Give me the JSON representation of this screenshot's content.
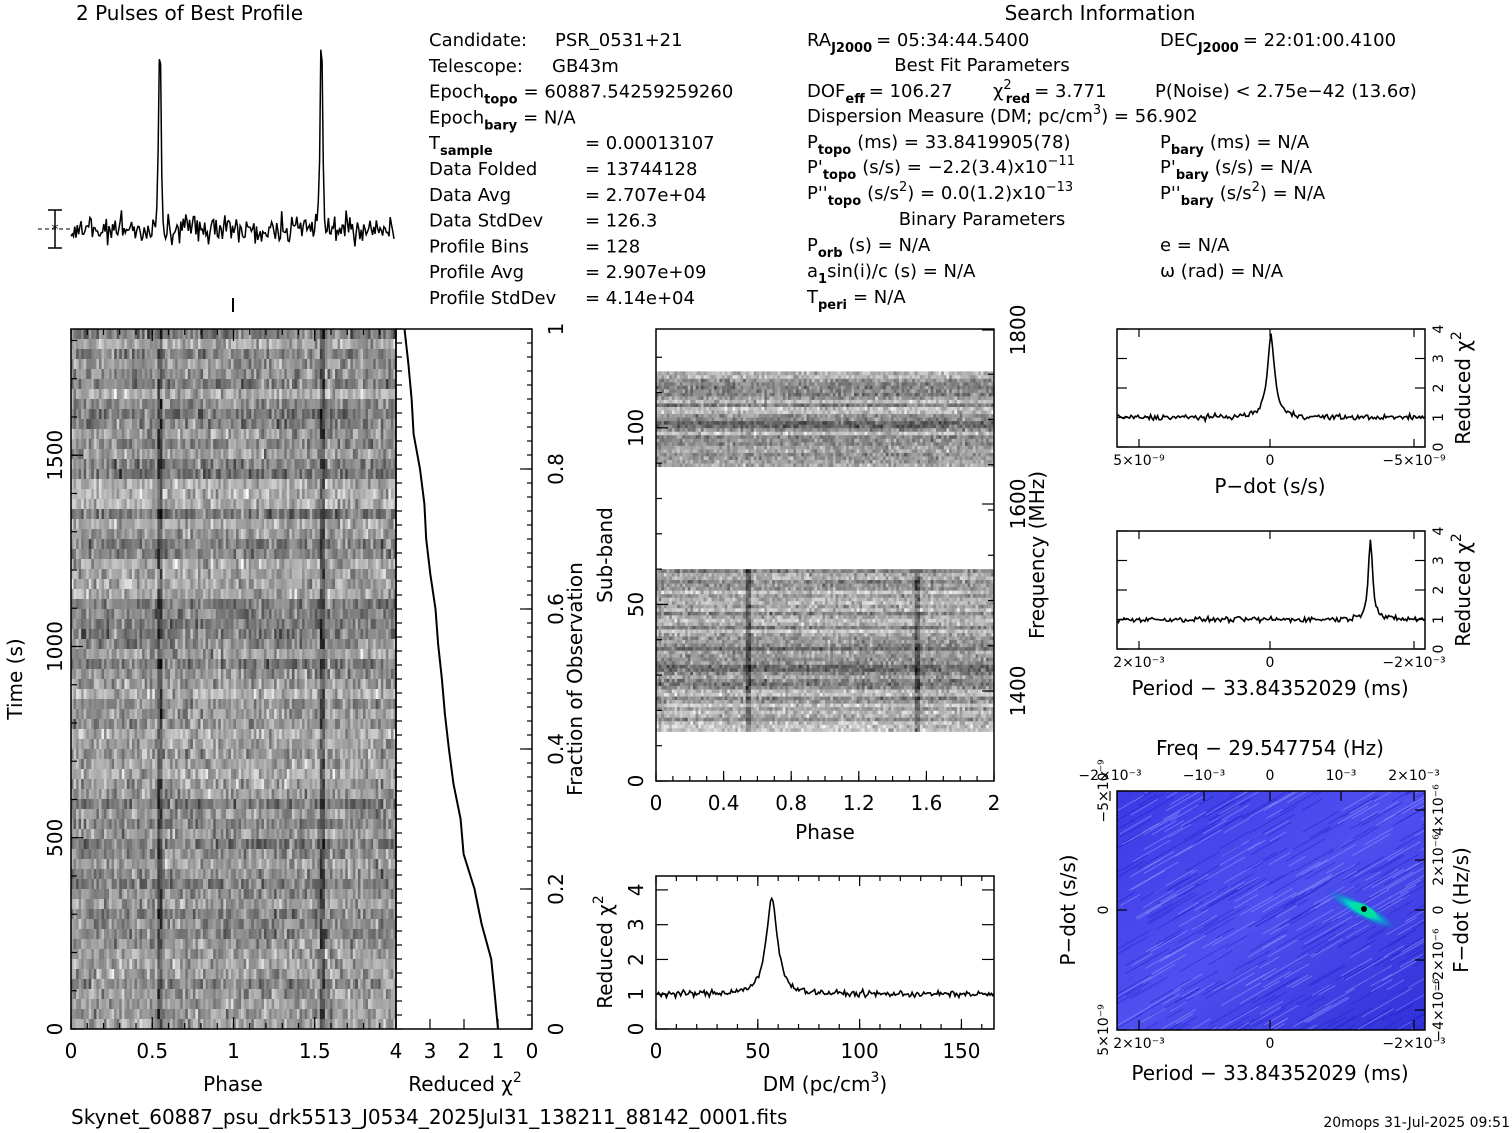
{
  "texts": {
    "prof_title": "2 Pulses of Best Profile",
    "search_title": "Search Information",
    "bestfit_title": "Best Fit Parameters",
    "binary_title": "Binary Parameters",
    "footer_left": "Skynet_60887_psu_drk5513_J0534_2025Jul31_138211_88142_0001.fits",
    "footer_right": "20mops  31-Jul-2025 09:51"
  },
  "candidate_info": [
    {
      "label": "Candidate:",
      "value": "PSR_0531+21"
    },
    {
      "label": "Telescope:",
      "value": "GB43m"
    },
    {
      "label": "Epoch",
      "sub": "topo",
      "value": "= 60887.54259259260"
    },
    {
      "label": "Epoch",
      "sub": "bary",
      "value": "= N/A"
    },
    {
      "label": "T",
      "sub": "sample",
      "value": "=  0.00013107"
    },
    {
      "label": "Data Folded",
      "value": "=  13744128"
    },
    {
      "label": "Data Avg",
      "value": "=  2.707e+04"
    },
    {
      "label": "Data StdDev",
      "value": "=  126.3"
    },
    {
      "label": "Profile Bins",
      "value": "=  128"
    },
    {
      "label": "Profile Avg",
      "value": "=  2.907e+09"
    },
    {
      "label": "Profile StdDev",
      "value": "=  4.14e+04"
    }
  ],
  "search_info": {
    "ra_label": "RA",
    "ra_sub": "J2000",
    "ra_value": "= 05:34:44.5400",
    "dec_label": "DEC",
    "dec_sub": "J2000",
    "dec_value": "= 22:01:00.4100",
    "dof_label": "DOF",
    "dof_sub": "eff",
    "dof_value": "= 106.27",
    "chi_label": "χ",
    "chi_sup": "2",
    "chi_sub": "red",
    "chi_value": "= 3.771",
    "pnoise": "P(Noise) < 2.75e−42   (13.6σ)",
    "dm_text": "Dispersion Measure (DM; pc/cm",
    "dm_sup": "3",
    "dm_value": ") = 56.902",
    "ptopo_label": "P",
    "ptopo_sub": "topo",
    "ptopo_value": "(ms) =  33.8419905(78)",
    "pbary_label": "P",
    "pbary_sub": "bary",
    "pbary_value": "(ms) = N/A",
    "pdtopo_label": "P'",
    "pdtopo_sub": "topo",
    "pdtopo_value": "(s/s) = −2.2(3.4)x10",
    "pdtopo_exp": "−11",
    "pdbary_label": "P'",
    "pdbary_sub": "bary",
    "pdbary_value": "(s/s) = N/A",
    "pddtopo_label": "P''",
    "pddtopo_sub": "topo",
    "pddtopo_value": "(s/s",
    "pddtopo_sup": "2",
    "pddtopo_value2": ") = 0.0(1.2)x10",
    "pddtopo_exp": "−13",
    "pddbary_label": "P''",
    "pddbary_sub": "bary",
    "pddbary_value": "(s/s",
    "pddbary_sup": "2",
    "pddbary_value2": ") = N/A",
    "porb_label": "P",
    "porb_sub": "orb",
    "porb_value": "(s) = N/A",
    "e_value": "e = N/A",
    "a1_label": "a",
    "a1_sub": "1",
    "a1_value": "sin(i)/c (s) = N/A",
    "omega_value": "ω (rad) = N/A",
    "tperi_label": "T",
    "tperi_sub": "peri",
    "tperi_value": "= N/A"
  },
  "chart_data": [
    {
      "id": "profile",
      "type": "line",
      "title": "2 Pulses of Best Profile",
      "x_range": [
        0,
        2
      ],
      "pulse_peak_phases": [
        0.55,
        1.55
      ],
      "grid": false
    },
    {
      "id": "time_phase",
      "type": "heatmap",
      "xlabel": "Phase",
      "ylabel": "Time (s)",
      "x_ticks": [
        "0",
        "0.5",
        "1",
        "1.5"
      ],
      "y_ticks": [
        "0",
        "500",
        "1000",
        "1500"
      ],
      "x_range": [
        0,
        2
      ],
      "y_range": [
        0,
        1830
      ]
    },
    {
      "id": "chi_vs_time",
      "type": "line",
      "xlabel": "Reduced χ",
      "xlabel_sup": "2",
      "ylabel_right": "Fraction of Observation",
      "x_ticks": [
        "4",
        "3",
        "2",
        "1",
        "0"
      ],
      "y_ticks": [
        "0",
        "0.2",
        "0.4",
        "0.6",
        "0.8",
        "1"
      ],
      "x_range": [
        4,
        0
      ],
      "y_range": [
        0,
        1
      ],
      "fraction": [
        0,
        0.05,
        0.1,
        0.15,
        0.2,
        0.25,
        0.3,
        0.35,
        0.4,
        0.45,
        0.5,
        0.55,
        0.6,
        0.65,
        0.7,
        0.75,
        0.8,
        0.85,
        0.9,
        0.95,
        1.0
      ],
      "chi": [
        1.0,
        1.1,
        1.2,
        1.5,
        1.7,
        2.0,
        2.1,
        2.3,
        2.45,
        2.55,
        2.65,
        2.75,
        2.85,
        3.0,
        3.1,
        3.2,
        3.3,
        3.5,
        3.55,
        3.65,
        3.75
      ]
    },
    {
      "id": "subband_phase",
      "type": "heatmap",
      "xlabel": "Phase",
      "ylabel": "Sub-band",
      "ylabel_right": "Frequency (MHz)",
      "x_ticks": [
        "0",
        "0.4",
        "0.8",
        "1.2",
        "1.6",
        "2"
      ],
      "y_ticks": [
        "0",
        "50",
        "100"
      ],
      "y2_ticks": [
        "1400",
        "1600",
        "1800"
      ],
      "x_range": [
        0,
        2
      ],
      "y_range": [
        0,
        128
      ],
      "data_bands": [
        [
          14,
          60
        ],
        [
          89,
          116
        ]
      ],
      "dark_phases": [
        0.55,
        1.55
      ]
    },
    {
      "id": "dm_chi",
      "type": "line",
      "xlabel": "DM (pc/cm",
      "xlabel_sup": "3",
      "xlabel_end": ")",
      "ylabel": "Reduced χ",
      "ylabel_sup": "2",
      "x_ticks": [
        "0",
        "50",
        "100",
        "150"
      ],
      "y_ticks": [
        "0",
        "1",
        "2",
        "3",
        "4"
      ],
      "x_range": [
        0,
        166
      ],
      "y_range": [
        0,
        4.4
      ],
      "peak_dm": 56.902,
      "peak_chi": 3.77,
      "baseline_chi": 1.0
    },
    {
      "id": "pdot_chi",
      "type": "line",
      "xlabel": "P−dot (s/s)",
      "ylabel": "Reduced χ",
      "ylabel_sup": "2",
      "x_ticks": [
        "5×10⁻⁹",
        "0",
        "−5×10⁻⁹"
      ],
      "y_ticks": [
        "0",
        "1",
        "2",
        "3",
        "4"
      ],
      "x_range": [
        5e-09,
        -5e-09
      ],
      "y_range": [
        0,
        4
      ],
      "peak_x": 0,
      "peak_chi": 3.77,
      "baseline_chi": 1.0
    },
    {
      "id": "period_chi",
      "type": "line",
      "xlabel": "Period − 33.84352029 (ms)",
      "ylabel": "Reduced χ",
      "ylabel_sup": "2",
      "x_ticks": [
        "2×10⁻³",
        "0",
        "−2×10⁻³"
      ],
      "y_ticks": [
        "0",
        "1",
        "2",
        "3",
        "4"
      ],
      "x_range": [
        0.0024,
        -0.0024
      ],
      "y_range": [
        0,
        4
      ],
      "peak_x": -0.00155,
      "peak_chi": 3.77,
      "baseline_chi": 1.0
    },
    {
      "id": "p_pdot_plane",
      "type": "heatmap",
      "title": "Freq − 29.547754 (Hz)",
      "xlabel": "Period − 33.84352029 (ms)",
      "ylabel": "P−dot (s/s)",
      "ylabel_right": "F−dot (Hz/s)",
      "x_ticks": [
        "2×10⁻³",
        "0",
        "−2×10⁻³"
      ],
      "top_ticks": [
        "−2×10⁻³",
        "−10⁻³",
        "0",
        "10⁻³",
        "2×10⁻³"
      ],
      "y_ticks": [
        "5×10⁻⁹",
        "0",
        "−5×10⁻⁹"
      ],
      "y2_ticks": [
        "−4×10⁻⁶",
        "−2×10⁻⁶",
        "0",
        "2×10⁻⁶",
        "4×10⁻⁶"
      ],
      "peak_period": -0.00155,
      "peak_pdot": 0
    }
  ]
}
